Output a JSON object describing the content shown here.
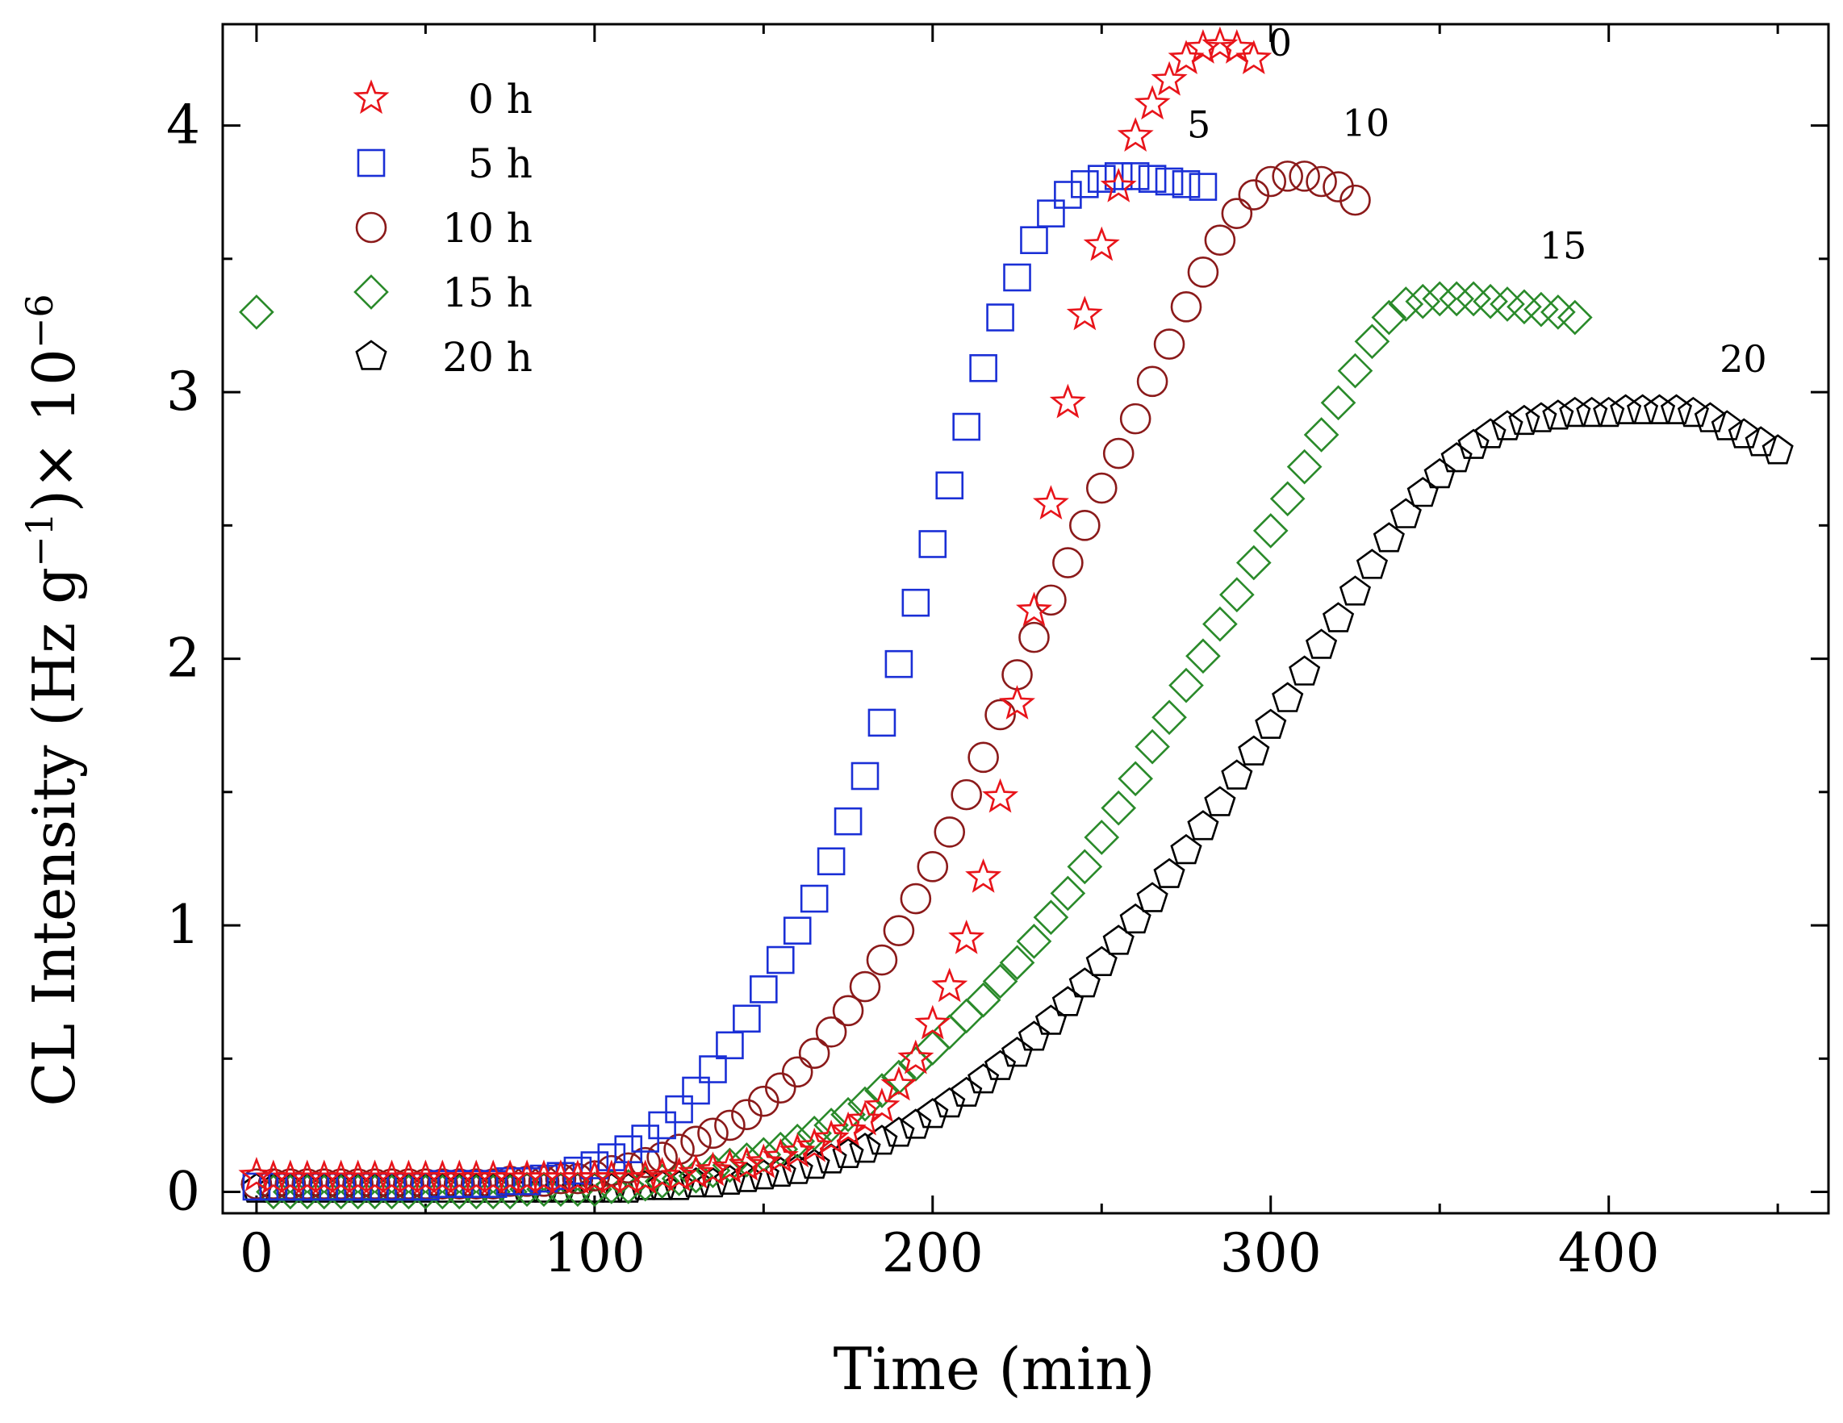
{
  "chart_data": {
    "type": "scatter",
    "title": "",
    "xlabel": "Time (min)",
    "ylabel": "CL Intensity (Hz g",
    "ylabel_sup1": "−1",
    "ylabel_mid": ")× 10",
    "ylabel_sup2": "−6",
    "xlim": [
      -10,
      465
    ],
    "ylim": [
      -0.08,
      4.38
    ],
    "x_ticks": [
      0,
      100,
      200,
      300,
      400
    ],
    "y_ticks": [
      0,
      1,
      2,
      3,
      4
    ],
    "x_tick_labels": [
      "0",
      "100",
      "200",
      "300",
      "400"
    ],
    "y_tick_labels": [
      "0",
      "1",
      "2",
      "3",
      "4"
    ],
    "legend_position": "top-left",
    "series": [
      {
        "name": "0 h",
        "marker": "star",
        "color": "#e8141a",
        "label": "0",
        "x": [
          0,
          5,
          10,
          15,
          20,
          25,
          30,
          35,
          40,
          45,
          50,
          55,
          60,
          65,
          70,
          75,
          80,
          85,
          90,
          95,
          100,
          105,
          110,
          115,
          120,
          125,
          130,
          135,
          140,
          145,
          150,
          155,
          160,
          165,
          170,
          175,
          180,
          185,
          190,
          195,
          200,
          205,
          210,
          215,
          220,
          225,
          230,
          235,
          240,
          245,
          250,
          255,
          260,
          265,
          270,
          275,
          280,
          285,
          290,
          295
        ],
        "y": [
          0.06,
          0.05,
          0.05,
          0.05,
          0.05,
          0.05,
          0.05,
          0.05,
          0.05,
          0.05,
          0.05,
          0.05,
          0.05,
          0.05,
          0.05,
          0.05,
          0.05,
          0.05,
          0.05,
          0.05,
          0.05,
          0.05,
          0.05,
          0.05,
          0.06,
          0.06,
          0.07,
          0.08,
          0.09,
          0.1,
          0.11,
          0.13,
          0.15,
          0.17,
          0.2,
          0.23,
          0.27,
          0.32,
          0.4,
          0.5,
          0.63,
          0.77,
          0.95,
          1.18,
          1.48,
          1.83,
          2.18,
          2.58,
          2.96,
          3.29,
          3.55,
          3.77,
          3.96,
          4.08,
          4.17,
          4.25,
          4.29,
          4.3,
          4.29,
          4.25
        ]
      },
      {
        "name": "5 h",
        "marker": "square",
        "color": "#1a2fd6",
        "label": "5",
        "x": [
          0,
          5,
          10,
          15,
          20,
          25,
          30,
          35,
          40,
          45,
          50,
          55,
          60,
          65,
          70,
          75,
          80,
          85,
          90,
          95,
          100,
          105,
          110,
          115,
          120,
          125,
          130,
          135,
          140,
          145,
          150,
          155,
          160,
          165,
          170,
          175,
          180,
          185,
          190,
          195,
          200,
          205,
          210,
          215,
          220,
          225,
          230,
          235,
          240,
          245,
          250,
          255,
          260,
          265,
          270,
          275,
          280
        ],
        "y": [
          0.02,
          0.02,
          0.02,
          0.02,
          0.02,
          0.02,
          0.02,
          0.02,
          0.02,
          0.02,
          0.02,
          0.03,
          0.03,
          0.03,
          0.03,
          0.04,
          0.04,
          0.05,
          0.06,
          0.08,
          0.1,
          0.13,
          0.16,
          0.2,
          0.25,
          0.31,
          0.38,
          0.46,
          0.55,
          0.65,
          0.76,
          0.87,
          0.98,
          1.1,
          1.24,
          1.39,
          1.56,
          1.76,
          1.98,
          2.21,
          2.43,
          2.65,
          2.87,
          3.09,
          3.28,
          3.43,
          3.57,
          3.67,
          3.74,
          3.78,
          3.8,
          3.81,
          3.81,
          3.8,
          3.79,
          3.78,
          3.77
        ]
      },
      {
        "name": "10 h",
        "marker": "circle",
        "color": "#8b1a1a",
        "label": "10",
        "x": [
          0,
          5,
          10,
          15,
          20,
          25,
          30,
          35,
          40,
          45,
          50,
          55,
          60,
          65,
          70,
          75,
          80,
          85,
          90,
          95,
          100,
          105,
          110,
          115,
          120,
          125,
          130,
          135,
          140,
          145,
          150,
          155,
          160,
          165,
          170,
          175,
          180,
          185,
          190,
          195,
          200,
          205,
          210,
          215,
          220,
          225,
          230,
          235,
          240,
          245,
          250,
          255,
          260,
          265,
          270,
          275,
          280,
          285,
          290,
          295,
          300,
          305,
          310,
          315,
          320,
          325
        ],
        "y": [
          0.03,
          0.03,
          0.03,
          0.03,
          0.03,
          0.03,
          0.03,
          0.03,
          0.03,
          0.03,
          0.03,
          0.03,
          0.03,
          0.03,
          0.03,
          0.04,
          0.04,
          0.04,
          0.05,
          0.05,
          0.06,
          0.08,
          0.09,
          0.11,
          0.13,
          0.16,
          0.19,
          0.22,
          0.25,
          0.29,
          0.34,
          0.39,
          0.45,
          0.52,
          0.6,
          0.68,
          0.77,
          0.87,
          0.98,
          1.1,
          1.22,
          1.35,
          1.49,
          1.63,
          1.79,
          1.94,
          2.08,
          2.22,
          2.36,
          2.5,
          2.64,
          2.77,
          2.9,
          3.04,
          3.18,
          3.32,
          3.45,
          3.57,
          3.67,
          3.74,
          3.79,
          3.81,
          3.81,
          3.79,
          3.77,
          3.72
        ]
      },
      {
        "name": "15 h",
        "marker": "diamond",
        "color": "#2a8a2a",
        "label": "15",
        "x": [
          0,
          5,
          10,
          15,
          20,
          25,
          30,
          35,
          40,
          45,
          50,
          55,
          60,
          65,
          70,
          75,
          80,
          85,
          90,
          95,
          100,
          105,
          110,
          115,
          120,
          125,
          130,
          135,
          140,
          145,
          150,
          155,
          160,
          165,
          170,
          175,
          180,
          185,
          190,
          195,
          200,
          205,
          210,
          215,
          220,
          225,
          230,
          235,
          240,
          245,
          250,
          255,
          260,
          265,
          270,
          275,
          280,
          285,
          290,
          295,
          300,
          305,
          310,
          315,
          320,
          325,
          330,
          335,
          340,
          345,
          350,
          355,
          360,
          365,
          370,
          375,
          380,
          385,
          390
        ],
        "y": [
          3.3,
          0,
          0,
          0,
          0,
          0,
          0,
          0,
          0,
          0,
          0,
          0,
          0,
          0,
          0,
          0,
          0.01,
          0.01,
          0.01,
          0.01,
          0.01,
          0.02,
          0.02,
          0.03,
          0.04,
          0.05,
          0.06,
          0.08,
          0.1,
          0.12,
          0.14,
          0.16,
          0.19,
          0.22,
          0.25,
          0.29,
          0.33,
          0.38,
          0.43,
          0.48,
          0.54,
          0.6,
          0.66,
          0.72,
          0.79,
          0.86,
          0.94,
          1.03,
          1.12,
          1.22,
          1.33,
          1.44,
          1.55,
          1.67,
          1.78,
          1.9,
          2.01,
          2.13,
          2.24,
          2.36,
          2.48,
          2.6,
          2.72,
          2.84,
          2.96,
          3.08,
          3.19,
          3.28,
          3.33,
          3.34,
          3.35,
          3.35,
          3.35,
          3.34,
          3.33,
          3.32,
          3.31,
          3.3,
          3.28
        ]
      },
      {
        "name": "20 h",
        "marker": "pentagon",
        "color": "#000000",
        "label": "20",
        "x": [
          0,
          5,
          10,
          15,
          20,
          25,
          30,
          35,
          40,
          45,
          50,
          55,
          60,
          65,
          70,
          75,
          80,
          85,
          90,
          95,
          100,
          105,
          110,
          115,
          120,
          125,
          130,
          135,
          140,
          145,
          150,
          155,
          160,
          165,
          170,
          175,
          180,
          185,
          190,
          195,
          200,
          205,
          210,
          215,
          220,
          225,
          230,
          235,
          240,
          245,
          250,
          255,
          260,
          265,
          270,
          275,
          280,
          285,
          290,
          295,
          300,
          305,
          310,
          315,
          320,
          325,
          330,
          335,
          340,
          345,
          350,
          355,
          360,
          365,
          370,
          375,
          380,
          385,
          390,
          395,
          400,
          405,
          410,
          415,
          420,
          425,
          430,
          435,
          440,
          445,
          450
        ],
        "y": [
          0.01,
          0.01,
          0.01,
          0.01,
          0.01,
          0.01,
          0.01,
          0.01,
          0.01,
          0.01,
          0.01,
          0.01,
          0.01,
          0.01,
          0.01,
          0.01,
          0.01,
          0.01,
          0.01,
          0.01,
          0.01,
          0.01,
          0.01,
          0.02,
          0.02,
          0.02,
          0.03,
          0.03,
          0.04,
          0.05,
          0.06,
          0.07,
          0.08,
          0.1,
          0.12,
          0.14,
          0.16,
          0.19,
          0.22,
          0.25,
          0.29,
          0.33,
          0.37,
          0.42,
          0.47,
          0.52,
          0.58,
          0.64,
          0.71,
          0.78,
          0.86,
          0.94,
          1.02,
          1.1,
          1.19,
          1.28,
          1.37,
          1.46,
          1.56,
          1.65,
          1.75,
          1.85,
          1.95,
          2.05,
          2.15,
          2.25,
          2.35,
          2.45,
          2.54,
          2.62,
          2.69,
          2.75,
          2.8,
          2.84,
          2.87,
          2.89,
          2.9,
          2.91,
          2.92,
          2.92,
          2.92,
          2.93,
          2.93,
          2.93,
          2.93,
          2.92,
          2.9,
          2.87,
          2.84,
          2.81,
          2.78
        ]
      }
    ]
  }
}
